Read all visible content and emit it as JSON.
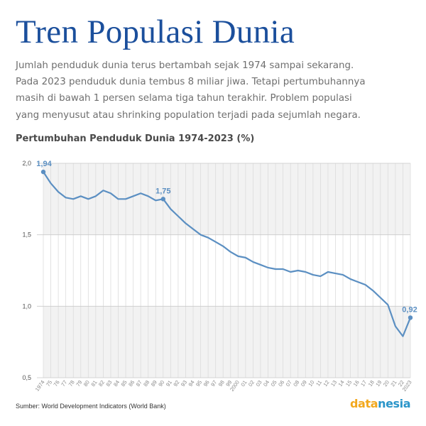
{
  "title": "Tren Populasi Dunia",
  "intro_lines": [
    "Jumlah penduduk dunia terus bertambah sejak 1974 sampai sekarang.",
    "Pada 2023 penduduk dunia tembus 8 miliar jiwa. Tetapi pertumbuhannya",
    "masih di bawah 1 persen selama tiga tahun terakhir. Problem populasi",
    "yang menyusut atau shrinking population terjadi pada sejumlah negara."
  ],
  "source": "Sumber: World Development Indicators (World Bank)",
  "logo": {
    "part1": "data",
    "part2": "nesia"
  },
  "colors": {
    "title": "#1b4f9c",
    "line": "#5b8fc2",
    "band": "#f2f2f2",
    "logo_data": "#f2a81d",
    "logo_nesia": "#2a95c9"
  },
  "chart_data": {
    "type": "line",
    "title": "Pertumbuhan Penduduk Dunia 1974-2023 (%)",
    "categories": [
      "1974",
      "75",
      "76",
      "77",
      "78",
      "79",
      "80",
      "81",
      "82",
      "83",
      "84",
      "85",
      "86",
      "87",
      "88",
      "89",
      "90",
      "91",
      "92",
      "93",
      "94",
      "95",
      "96",
      "97",
      "98",
      "99",
      "2000",
      "01",
      "02",
      "03",
      "04",
      "05",
      "06",
      "07",
      "08",
      "09",
      "10",
      "11",
      "12",
      "13",
      "14",
      "15",
      "16",
      "17",
      "18",
      "19",
      "20",
      "21",
      "22",
      "2023"
    ],
    "values": [
      1.94,
      1.86,
      1.8,
      1.76,
      1.75,
      1.77,
      1.75,
      1.77,
      1.81,
      1.79,
      1.75,
      1.75,
      1.77,
      1.79,
      1.77,
      1.74,
      1.75,
      1.68,
      1.63,
      1.58,
      1.54,
      1.5,
      1.48,
      1.45,
      1.42,
      1.38,
      1.35,
      1.34,
      1.31,
      1.29,
      1.27,
      1.26,
      1.26,
      1.24,
      1.25,
      1.24,
      1.22,
      1.21,
      1.24,
      1.23,
      1.22,
      1.19,
      1.17,
      1.15,
      1.11,
      1.06,
      1.01,
      0.86,
      0.79,
      0.92
    ],
    "ylim": [
      0.5,
      2.0
    ],
    "yticks": [
      "2,0",
      "1,5",
      "1,0",
      "0,5"
    ],
    "ytick_values": [
      2.0,
      1.5,
      1.0,
      0.5
    ],
    "annotations": [
      {
        "index": 0,
        "label": "1,94"
      },
      {
        "index": 16,
        "label": "1,75"
      },
      {
        "index": 49,
        "label": "0,92"
      }
    ],
    "grid": true
  }
}
